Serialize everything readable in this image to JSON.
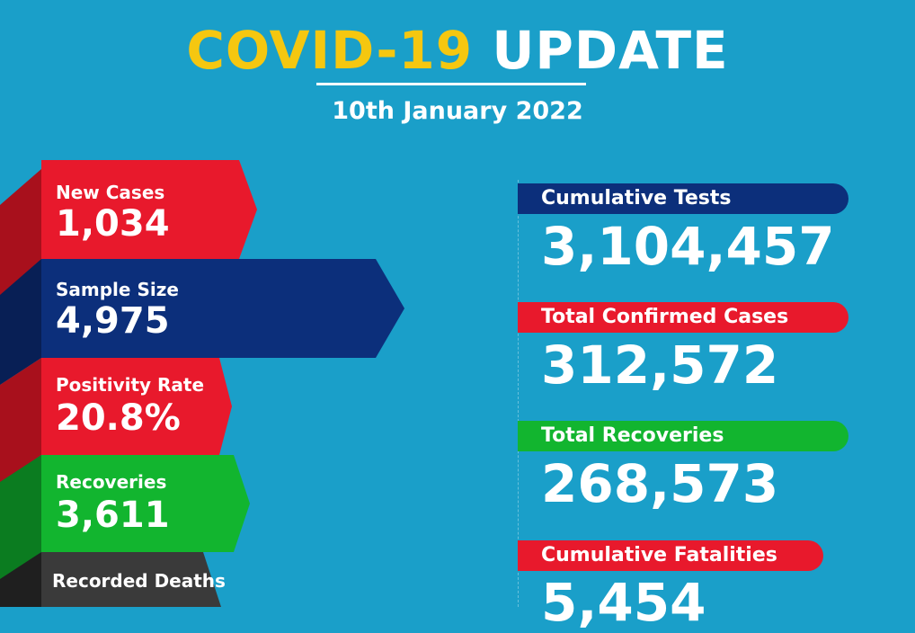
{
  "header": {
    "title_highlight": "COVID-19",
    "title_rest": "UPDATE",
    "date": "10th January 2022"
  },
  "left_stats": [
    {
      "label": "New Cases",
      "value": "1,034",
      "color": "#e8192c"
    },
    {
      "label": "Sample Size",
      "value": "4,975",
      "color": "#0c2f7b"
    },
    {
      "label": "Positivity Rate",
      "value": "20.8%",
      "color": "#e8192c"
    },
    {
      "label": "Recoveries",
      "value": "3,611",
      "color": "#12b52f"
    },
    {
      "label": "Recorded Deaths",
      "value": "",
      "color": "#3a3a3a"
    }
  ],
  "right_stats": [
    {
      "label": "Cumulative Tests",
      "value": "3,104,457",
      "color": "#0c2f7b"
    },
    {
      "label": "Total Confirmed Cases",
      "value": "312,572",
      "color": "#e8192c"
    },
    {
      "label": "Total Recoveries",
      "value": "268,573",
      "color": "#12b52f"
    },
    {
      "label": "Cumulative Fatalities",
      "value": "5,454",
      "color": "#e8192c"
    }
  ],
  "colors": {
    "background": "#1a9fc9",
    "accent_yellow": "#f5c710"
  }
}
